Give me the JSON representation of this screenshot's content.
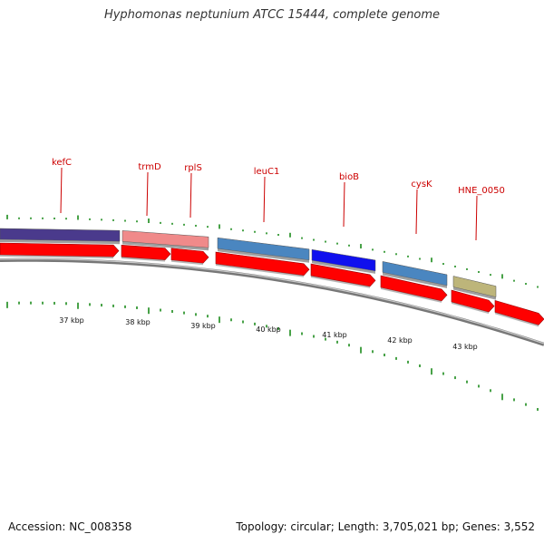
{
  "title": "Hyphomonas neptunium ATCC 15444, complete genome",
  "footer": {
    "accession": "Accession: NC_008358",
    "summary": "Topology: circular; Length: 3,705,021 bp; Genes: 3,552"
  },
  "colors": {
    "gene_label": "#cc0000",
    "forward_arrow": "#ff0000",
    "tick": "#1a8a1a",
    "backbone": "#888888"
  },
  "genes": [
    {
      "name": "kefC",
      "color": "#4a3a8c"
    },
    {
      "name": "trmD",
      "color": "#f08a8a"
    },
    {
      "name": "rplS",
      "color": ""
    },
    {
      "name": "leuC1",
      "color": "#4a86c0"
    },
    {
      "name": "bioB",
      "color": "#1010ee"
    },
    {
      "name": "cysK",
      "color": "#4a86c0"
    },
    {
      "name": "HNE_0050",
      "color": "#bdb57a"
    }
  ],
  "kbp_labels": [
    "37 kbp",
    "38 kbp",
    "39 kbp",
    "40 kbp",
    "41 kbp",
    "42 kbp",
    "43 kbp"
  ]
}
